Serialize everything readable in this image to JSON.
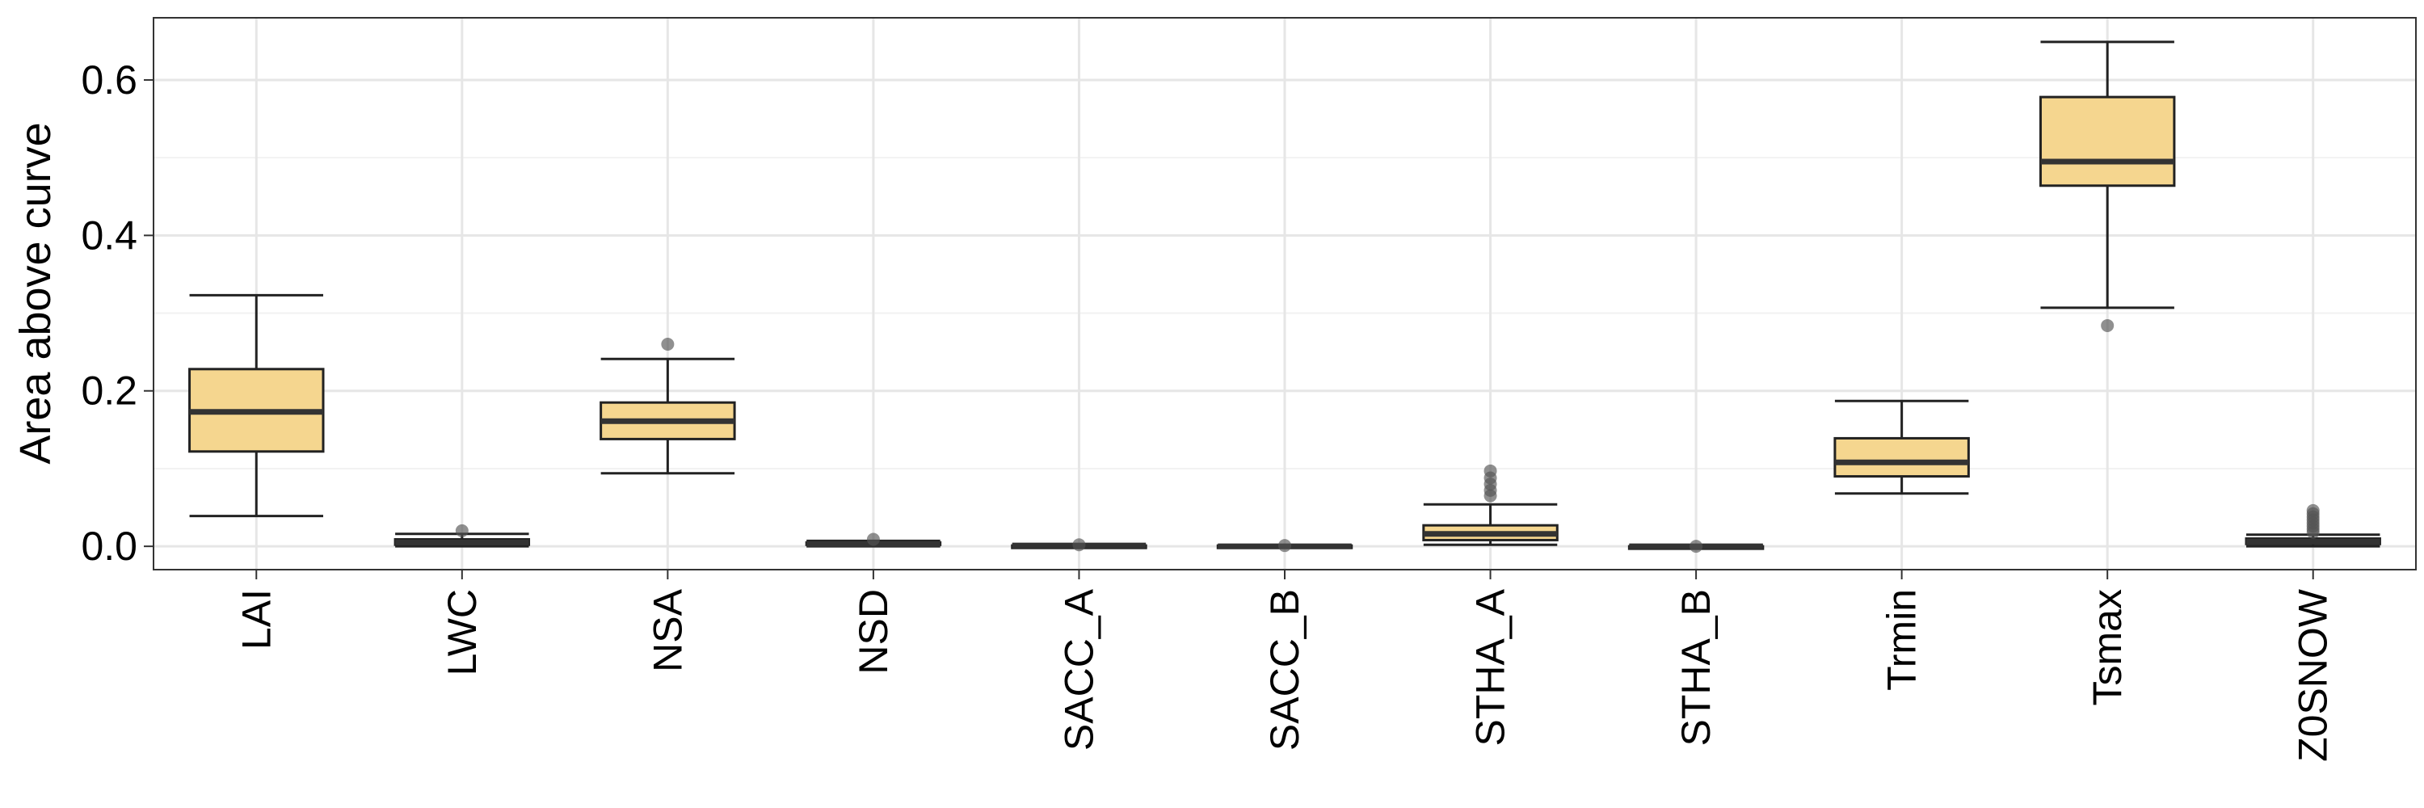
{
  "chart_data": {
    "type": "boxplot",
    "ylabel": "Area above curve",
    "xlabel": "",
    "ylim": [
      -0.03,
      0.68
    ],
    "yticks": [
      0.0,
      0.2,
      0.4,
      0.6
    ],
    "ytick_labels": [
      "0.0",
      "0.2",
      "0.4",
      "0.6"
    ],
    "grid": true,
    "colors": {
      "box_fill": "#f5d68f",
      "box_stroke": "#222222",
      "grid_major": "#e6e6e6",
      "grid_minor": "#f2f2f2",
      "outlier": "#555555"
    },
    "categories": [
      "LAI",
      "LWC",
      "NSA",
      "NSD",
      "SACC_A",
      "SACC_B",
      "STHA_A",
      "STHA_B",
      "Trmin",
      "Tsmax",
      "Z0SNOW"
    ],
    "boxes": [
      {
        "category": "LAI",
        "whisker_low": 0.039,
        "q1": 0.122,
        "median": 0.173,
        "q3": 0.228,
        "whisker_high": 0.323,
        "outliers": []
      },
      {
        "category": "LWC",
        "whisker_low": 0.0,
        "q1": 0.002,
        "median": 0.005,
        "q3": 0.009,
        "whisker_high": 0.016,
        "outliers": [
          0.02
        ]
      },
      {
        "category": "NSA",
        "whisker_low": 0.094,
        "q1": 0.138,
        "median": 0.161,
        "q3": 0.185,
        "whisker_high": 0.241,
        "outliers": [
          0.26
        ]
      },
      {
        "category": "NSD",
        "whisker_low": 0.0,
        "q1": 0.002,
        "median": 0.003,
        "q3": 0.005,
        "whisker_high": 0.007,
        "outliers": [
          0.009
        ]
      },
      {
        "category": "SACC_A",
        "whisker_low": 0.0,
        "q1": 0.0,
        "median": 0.001,
        "q3": 0.001,
        "whisker_high": 0.002,
        "outliers": [
          0.002
        ]
      },
      {
        "category": "SACC_B",
        "whisker_low": 0.0,
        "q1": 0.0,
        "median": 0.0,
        "q3": 0.001,
        "whisker_high": 0.001,
        "outliers": [
          0.001
        ]
      },
      {
        "category": "STHA_A",
        "whisker_low": 0.002,
        "q1": 0.008,
        "median": 0.016,
        "q3": 0.027,
        "whisker_high": 0.054,
        "outliers": [
          0.065,
          0.072,
          0.08,
          0.088,
          0.097
        ]
      },
      {
        "category": "STHA_B",
        "whisker_low": 0.0,
        "q1": 0.0,
        "median": 0.0,
        "q3": 0.0,
        "whisker_high": 0.001,
        "outliers": [
          0.0
        ]
      },
      {
        "category": "Trmin",
        "whisker_low": 0.068,
        "q1": 0.09,
        "median": 0.108,
        "q3": 0.139,
        "whisker_high": 0.187,
        "outliers": []
      },
      {
        "category": "Tsmax",
        "whisker_low": 0.307,
        "q1": 0.464,
        "median": 0.495,
        "q3": 0.578,
        "whisker_high": 0.649,
        "outliers": [
          0.284
        ]
      },
      {
        "category": "Z0SNOW",
        "whisker_low": 0.0,
        "q1": 0.003,
        "median": 0.006,
        "q3": 0.01,
        "whisker_high": 0.015,
        "outliers": [
          0.018,
          0.022,
          0.026,
          0.03,
          0.034,
          0.038,
          0.042,
          0.046
        ]
      }
    ]
  }
}
